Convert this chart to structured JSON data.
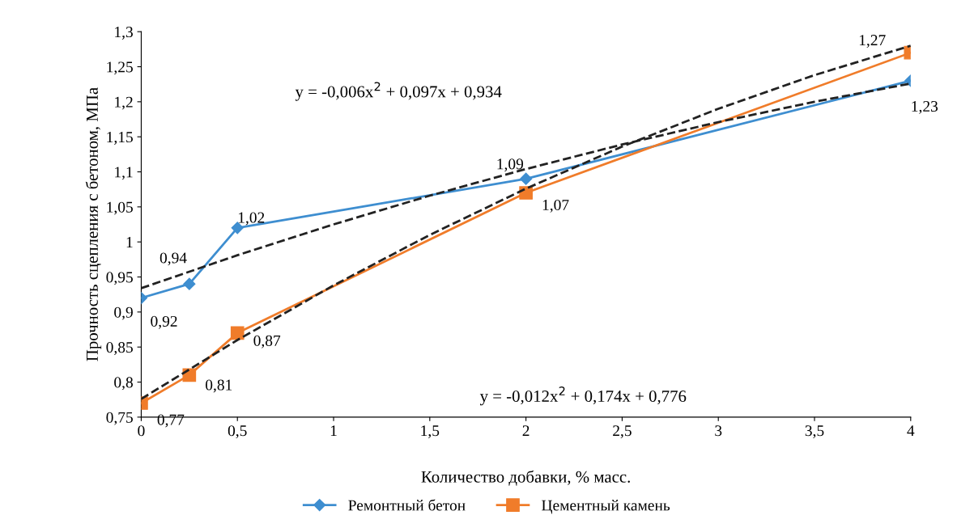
{
  "chart_data": {
    "type": "line",
    "xlabel": "Количество добавки, % масс.",
    "ylabel": "Прочность сцепления с бетоном, МПа",
    "xlim": [
      0,
      4
    ],
    "ylim": [
      0.75,
      1.3
    ],
    "xticks": [
      0,
      {
        "value": 0.5,
        "label": "0,5"
      },
      1,
      {
        "value": 1.5,
        "label": "1,5"
      },
      2,
      {
        "value": 2.5,
        "label": "2,5"
      },
      3,
      {
        "value": 3.5,
        "label": "3,5"
      },
      4
    ],
    "yticks": [
      {
        "value": 0.75,
        "label": "0,75"
      },
      {
        "value": 0.8,
        "label": "0,8"
      },
      {
        "value": 0.85,
        "label": "0,85"
      },
      {
        "value": 0.9,
        "label": "0,9"
      },
      {
        "value": 0.95,
        "label": "0,95"
      },
      1,
      {
        "value": 1.05,
        "label": "1,05"
      },
      {
        "value": 1.1,
        "label": "1,1"
      },
      {
        "value": 1.15,
        "label": "1,15"
      },
      {
        "value": 1.2,
        "label": "1,2"
      },
      {
        "value": 1.25,
        "label": "1,25"
      },
      {
        "value": 1.3,
        "label": "1,3"
      }
    ],
    "grid": false,
    "legend": "bottom",
    "series": [
      {
        "name": "Ремонтный бетон",
        "color": "#3e8ed0",
        "marker": "diamond",
        "line_style": "solid",
        "x": [
          0,
          0.25,
          0.5,
          2,
          4
        ],
        "values": [
          0.92,
          0.94,
          1.02,
          1.09,
          1.23
        ],
        "value_labels": [
          "0,92",
          "0,94",
          "1,02",
          "1,09",
          "1,23"
        ]
      },
      {
        "name": "Цементный камень",
        "color": "#f07c2a",
        "marker": "square",
        "line_style": "solid",
        "x": [
          0,
          0.25,
          0.5,
          2,
          4
        ],
        "values": [
          0.77,
          0.81,
          0.87,
          1.07,
          1.27
        ],
        "value_labels": [
          "0,77",
          "0,81",
          "0,87",
          "1,07",
          "1,27"
        ]
      },
      {
        "type": "line",
        "color": "#222222",
        "marker": "none",
        "line_style": "dashed",
        "x": [
          0,
          0.5,
          1,
          1.5,
          2,
          2.5,
          3,
          3.5,
          4
        ],
        "values": [
          0.934,
          0.981,
          1.025,
          1.066,
          1.104,
          1.139,
          1.171,
          1.2,
          1.226
        ]
      },
      {
        "type": "line",
        "color": "#222222",
        "marker": "none",
        "line_style": "dashed",
        "x": [
          0,
          0.5,
          1,
          1.5,
          2,
          2.5,
          3,
          3.5,
          4
        ],
        "values": [
          0.776,
          0.86,
          0.938,
          1.01,
          1.076,
          1.136,
          1.19,
          1.238,
          1.28
        ]
      }
    ],
    "annotations": [
      "y = -0,006x$^{2}$ + 0,097x + 0,934",
      "y = -0,012x$^{2}$ + 0,174x + 0,776"
    ]
  }
}
